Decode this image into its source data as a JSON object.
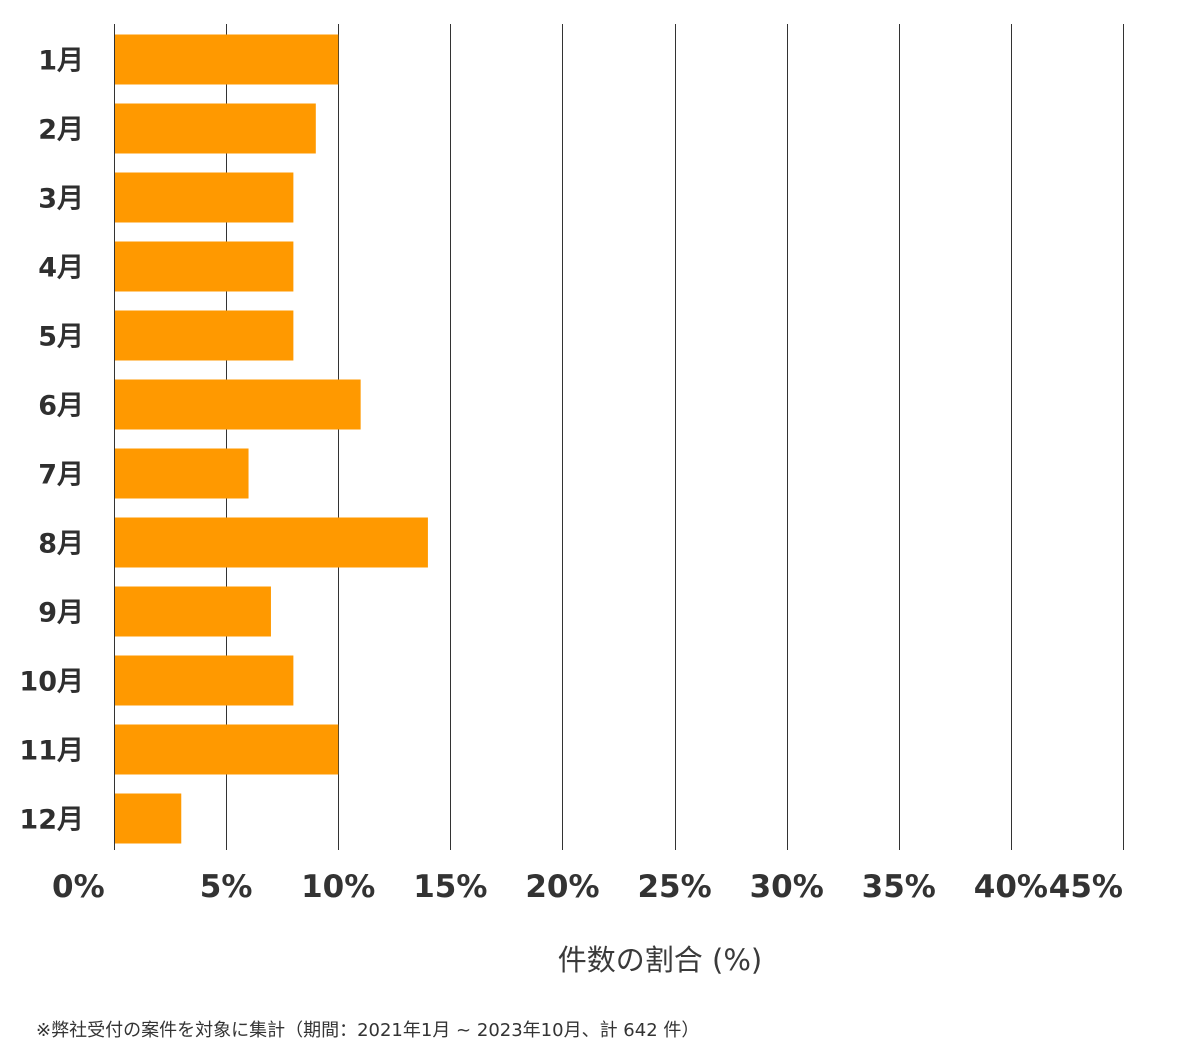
{
  "chart_data": {
    "type": "bar",
    "orientation": "horizontal",
    "categories": [
      "1月",
      "2月",
      "3月",
      "4月",
      "5月",
      "6月",
      "7月",
      "8月",
      "9月",
      "10月",
      "11月",
      "12月"
    ],
    "values": [
      10.0,
      9.0,
      8.0,
      8.0,
      8.0,
      11.0,
      6.0,
      14.0,
      7.0,
      8.0,
      10.0,
      3.0
    ],
    "xlim": [
      0,
      45
    ],
    "xticks": [
      0,
      5,
      10,
      15,
      20,
      25,
      30,
      35,
      40,
      45
    ],
    "xtick_labels": [
      "0%",
      "5%",
      "10%",
      "15%",
      "20%",
      "25%",
      "30%",
      "35%",
      "40%",
      "45%"
    ],
    "xlabel": "件数の割合 (%)",
    "ylabel": "",
    "grid": "vertical",
    "colors": {
      "bar": "#ff9900",
      "grid": "#333333"
    }
  },
  "footnote": "※弊社受付の案件を対象に集計（期間：2021年1月 ~ 2023年10月、計 642 件）"
}
